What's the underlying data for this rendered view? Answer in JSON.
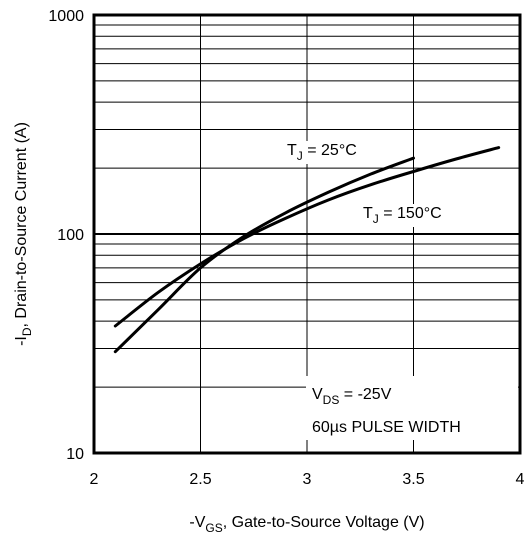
{
  "chart_data": {
    "type": "line",
    "title": "",
    "xlabel": {
      "prefix": "-V",
      "sub": "GS",
      "suffix": ", Gate-to-Source Voltage (V)"
    },
    "ylabel": {
      "prefix": "-I",
      "sub": "D",
      "suffix": ", Drain-to-Source Current (A)"
    },
    "xlim": [
      2,
      4
    ],
    "ylim": [
      10,
      1000
    ],
    "yscale": "log",
    "grid": true,
    "x_ticks": [
      {
        "value": 2,
        "label": "2"
      },
      {
        "value": 2.5,
        "label": "2.5"
      },
      {
        "value": 3,
        "label": "3"
      },
      {
        "value": 3.5,
        "label": "3.5"
      },
      {
        "value": 4,
        "label": "4"
      }
    ],
    "y_ticks": [
      {
        "value": 10,
        "label": "10"
      },
      {
        "value": 100,
        "label": "100"
      },
      {
        "value": 1000,
        "label": "1000"
      }
    ],
    "series": [
      {
        "name": {
          "prefix": "T",
          "sub": "J",
          "suffix": " =  25°C"
        },
        "x": [
          2.1,
          2.3,
          2.5,
          2.7,
          2.9,
          3.1,
          3.3,
          3.5
        ],
        "y": [
          29,
          45,
          70,
          97,
          125,
          155,
          188,
          222
        ]
      },
      {
        "name": {
          "prefix": "T",
          "sub": "J",
          "suffix": " = 150°C"
        },
        "x": [
          2.1,
          2.3,
          2.5,
          2.7,
          2.9,
          3.1,
          3.3,
          3.5,
          3.7,
          3.9
        ],
        "y": [
          38,
          54,
          73,
          95,
          118,
          143,
          168,
          193,
          220,
          248
        ]
      }
    ],
    "annotations": {
      "vds": {
        "prefix": "V",
        "sub": "DS",
        "suffix": " = -25V"
      },
      "pulse": "60µs PULSE  WIDTH"
    }
  }
}
